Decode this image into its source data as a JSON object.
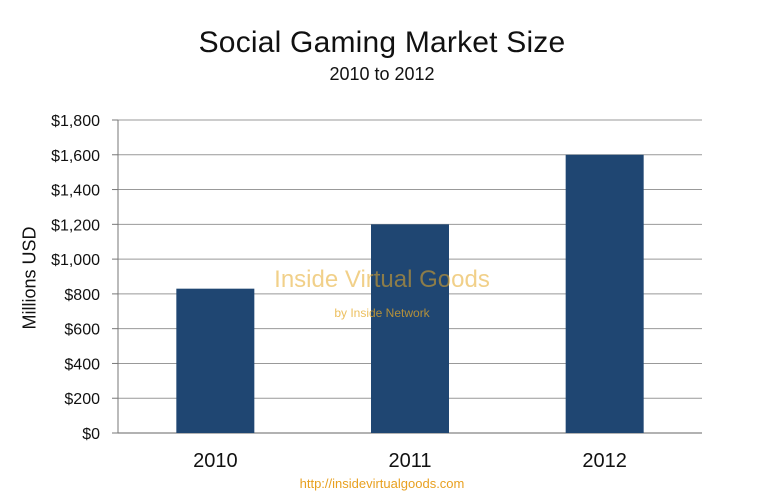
{
  "chart_data": {
    "type": "bar",
    "title": "Social Gaming Market Size",
    "subtitle": "2010 to 2012",
    "categories": [
      "2010",
      "2011",
      "2012"
    ],
    "values": [
      830,
      1200,
      1600
    ],
    "ylabel": "Millions USD",
    "xlabel": "",
    "ylim": [
      0,
      1800
    ],
    "yticks": [
      "$0",
      "$200",
      "$400",
      "$600",
      "$800",
      "$1,000",
      "$1,200",
      "$1,400",
      "$1,600",
      "$1,800"
    ],
    "grid": true,
    "bar_color": "#1f4672",
    "grid_color": "#999999"
  },
  "watermark": {
    "main": "Inside Virtual Goods",
    "sub": "by Inside Network"
  },
  "footer": {
    "url": "http://insidevirtualgoods.com"
  }
}
